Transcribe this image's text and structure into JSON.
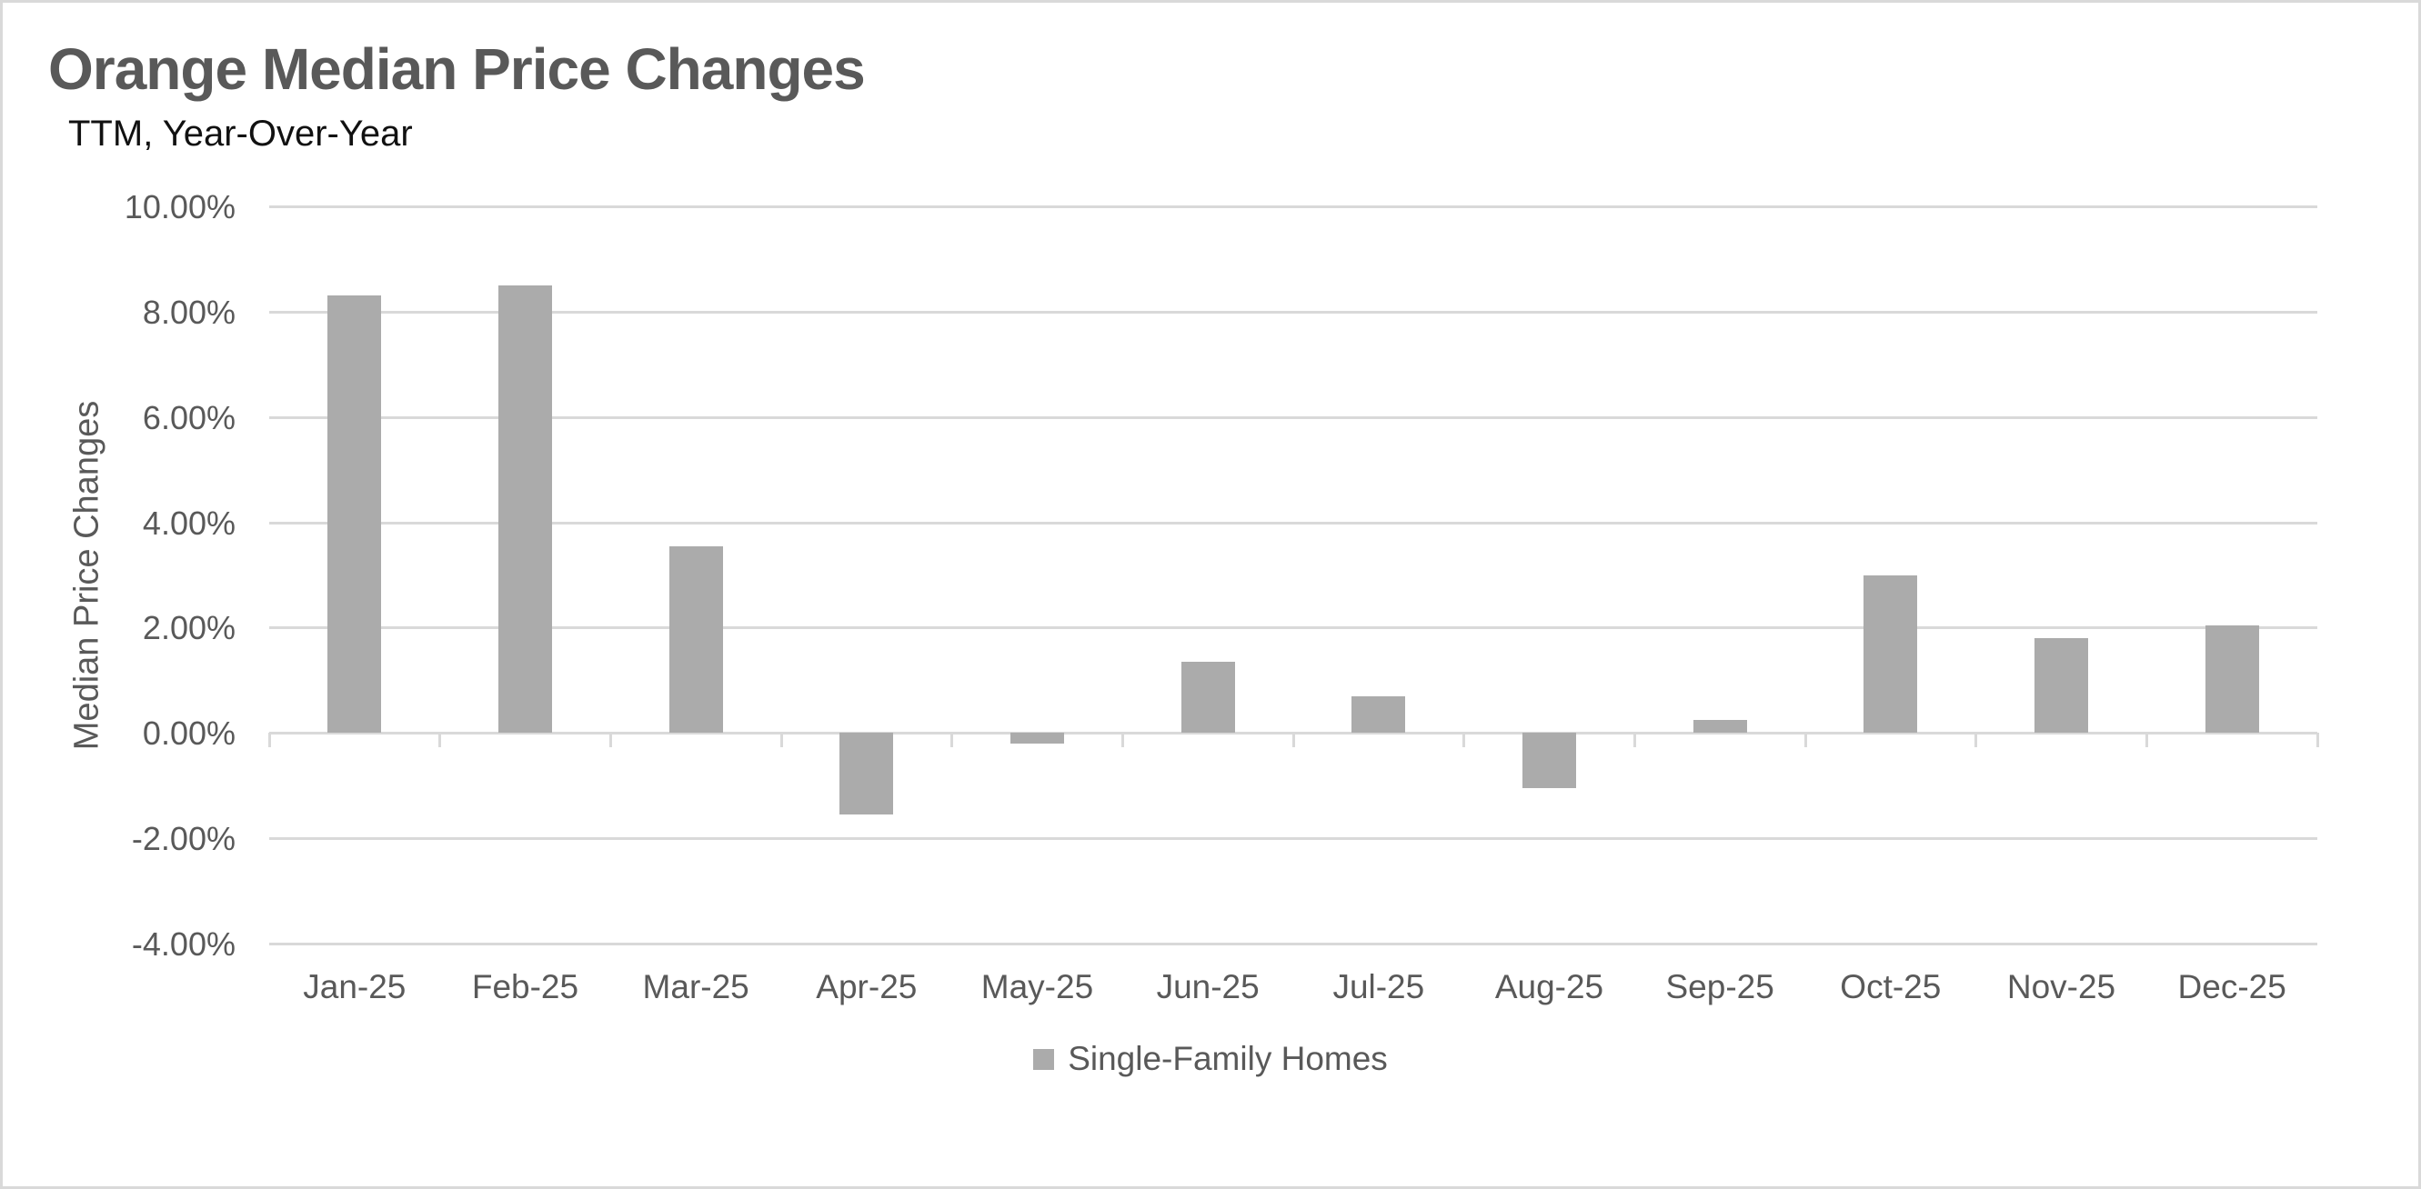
{
  "window": {
    "background_color": "#ffffff",
    "border_color": "#d9d9d9"
  },
  "chart_data": {
    "type": "bar",
    "title": "Orange Median Price Changes",
    "subtitle": "TTM, Year-Over-Year",
    "ylabel": "Median Price Changes",
    "xlabel": "",
    "categories": [
      "Jan-25",
      "Feb-25",
      "Mar-25",
      "Apr-25",
      "May-25",
      "Jun-25",
      "Jul-25",
      "Aug-25",
      "Sep-25",
      "Oct-25",
      "Nov-25",
      "Dec-25"
    ],
    "series": [
      {
        "name": "Single-Family Homes",
        "values": [
          8.3,
          8.5,
          3.55,
          -1.55,
          -0.2,
          1.35,
          0.7,
          -1.05,
          0.25,
          3.0,
          1.8,
          2.05
        ]
      }
    ],
    "values_unit": "percent",
    "ylim": [
      -4,
      10
    ],
    "y_ticks": [
      10,
      8,
      6,
      4,
      2,
      0,
      -2,
      -4
    ],
    "y_tick_labels": [
      "10.00%",
      "8.00%",
      "6.00%",
      "4.00%",
      "2.00%",
      "0.00%",
      "-2.00%",
      "-4.00%"
    ],
    "grid": true,
    "legend_position": "bottom",
    "legend_entries": [
      "Single-Family Homes"
    ],
    "bar_color": "#ababab",
    "gridline_color": "#d9d9d9",
    "text_color": "#595959",
    "title_color": "#595959",
    "subtitle_color": "#111111"
  }
}
